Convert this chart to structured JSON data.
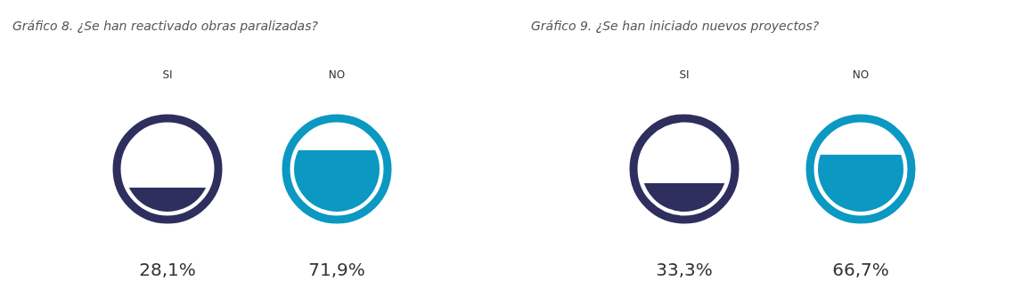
{
  "chart_data": [
    {
      "type": "other",
      "title": "Gráfico 8. ¿Se han reactivado obras paralizadas?",
      "categories": [
        "SI",
        "NO"
      ],
      "values": [
        28.1,
        71.9
      ],
      "colors": [
        "#2e2f5e",
        "#0b98c2"
      ],
      "value_labels": [
        "28,1%",
        "71,9%"
      ]
    },
    {
      "type": "other",
      "title": "Gráfico 9. ¿Se han iniciado nuevos proyectos?",
      "categories": [
        "SI",
        "NO"
      ],
      "values": [
        33.3,
        66.7
      ],
      "colors": [
        "#2e2f5e",
        "#0b98c2"
      ],
      "value_labels": [
        "33,3%",
        "66,7%"
      ]
    }
  ]
}
